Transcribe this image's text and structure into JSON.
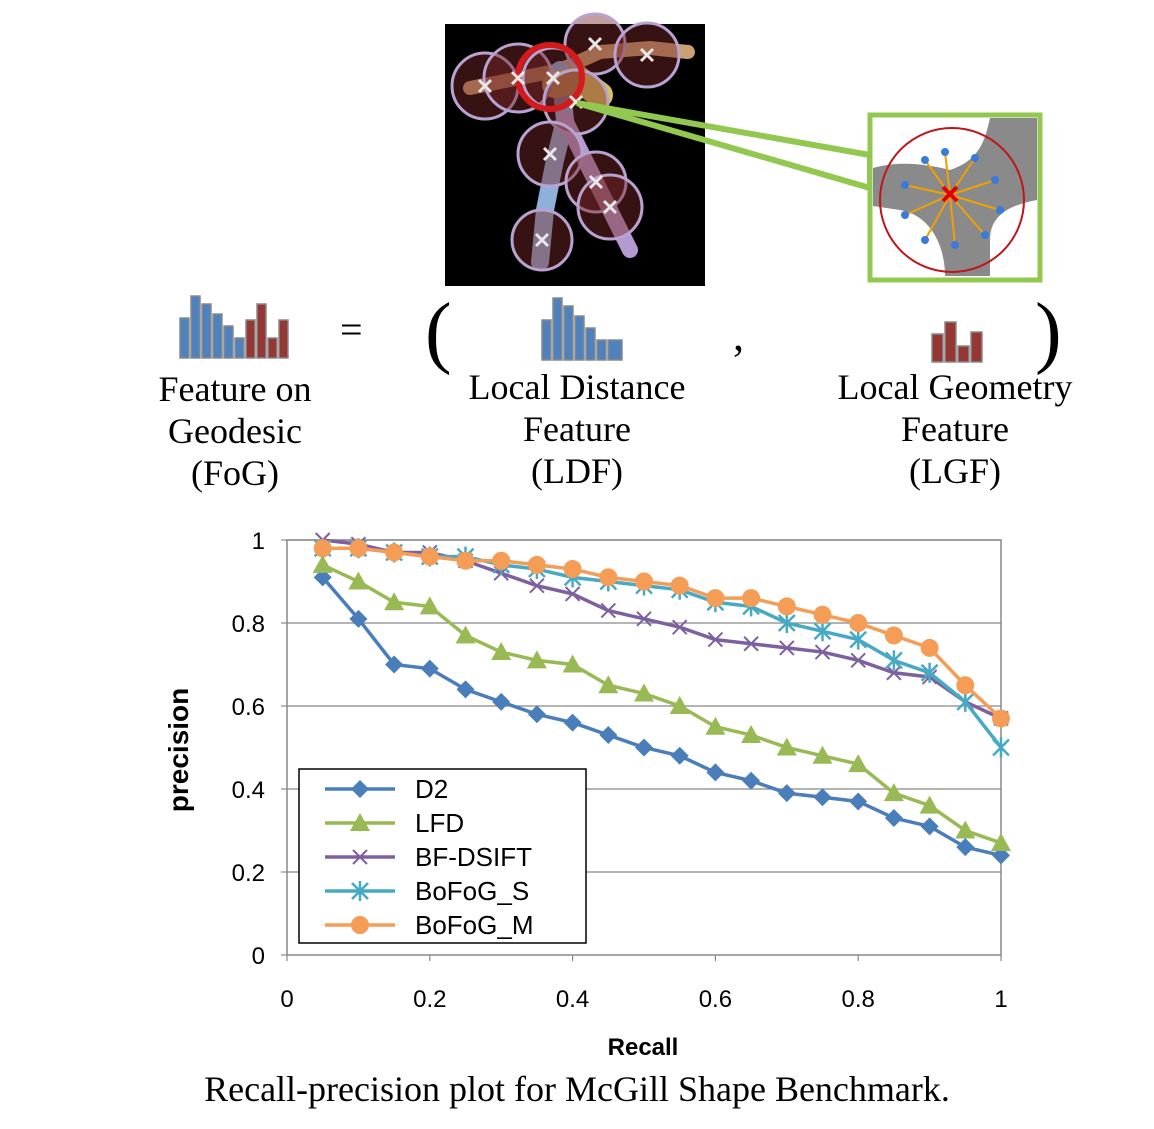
{
  "figure": {
    "fog_label": [
      "Feature on",
      "Geodesic",
      "(FoG)"
    ],
    "ldf_label": [
      "Local Distance",
      "Feature",
      "(LDF)"
    ],
    "lgf_label": [
      "Local Geometry",
      "Feature",
      "(LGF)"
    ],
    "equals": "=",
    "open_paren": "(",
    "comma": ",",
    "close_paren": ")",
    "caption": "Recall-precision plot for McGill Shape Benchmark."
  },
  "colors": {
    "hist_blue": "#4f81bd",
    "hist_red": "#953735",
    "callout_green": "#92c84f"
  },
  "chart_data": {
    "type": "line",
    "title": "",
    "xlabel": "Recall",
    "ylabel": "precision",
    "xlim": [
      0,
      1
    ],
    "ylim": [
      0,
      1
    ],
    "xticks": [
      "0",
      "0.2",
      "0.4",
      "0.6",
      "0.8",
      "1"
    ],
    "yticks": [
      "0",
      "0.2",
      "0.4",
      "0.6",
      "0.8",
      "1"
    ],
    "grid": "horizontal",
    "legend_position": "bottom-left",
    "x": [
      0.05,
      0.1,
      0.15,
      0.2,
      0.25,
      0.3,
      0.35,
      0.4,
      0.45,
      0.5,
      0.55,
      0.6,
      0.65,
      0.7,
      0.75,
      0.8,
      0.85,
      0.9,
      0.95,
      1.0
    ],
    "series": [
      {
        "name": "D2",
        "color": "#4a7ebb",
        "marker": "diamond",
        "values": [
          0.91,
          0.81,
          0.7,
          0.69,
          0.64,
          0.61,
          0.58,
          0.56,
          0.53,
          0.5,
          0.48,
          0.44,
          0.42,
          0.39,
          0.38,
          0.37,
          0.33,
          0.31,
          0.26,
          0.24
        ]
      },
      {
        "name": "LFD",
        "color": "#98b954",
        "marker": "triangle",
        "values": [
          0.94,
          0.9,
          0.85,
          0.84,
          0.77,
          0.73,
          0.71,
          0.7,
          0.65,
          0.63,
          0.6,
          0.55,
          0.53,
          0.5,
          0.48,
          0.46,
          0.39,
          0.36,
          0.3,
          0.27
        ]
      },
      {
        "name": "BF-DSIFT",
        "color": "#7d60a0",
        "marker": "x",
        "values": [
          1.0,
          0.99,
          0.97,
          0.97,
          0.95,
          0.92,
          0.89,
          0.87,
          0.83,
          0.81,
          0.79,
          0.76,
          0.75,
          0.74,
          0.73,
          0.71,
          0.68,
          0.67,
          0.61,
          0.57
        ]
      },
      {
        "name": "BoFoG_S",
        "color": "#46aac5",
        "marker": "asterisk",
        "values": [
          0.98,
          0.98,
          0.97,
          0.96,
          0.96,
          0.94,
          0.93,
          0.91,
          0.9,
          0.89,
          0.88,
          0.85,
          0.84,
          0.8,
          0.78,
          0.76,
          0.71,
          0.68,
          0.61,
          0.5
        ]
      },
      {
        "name": "BoFoG_M",
        "color": "#f59d56",
        "marker": "circle",
        "values": [
          0.98,
          0.98,
          0.97,
          0.96,
          0.95,
          0.95,
          0.94,
          0.93,
          0.91,
          0.9,
          0.89,
          0.86,
          0.86,
          0.84,
          0.82,
          0.8,
          0.77,
          0.74,
          0.65,
          0.57
        ]
      }
    ]
  }
}
